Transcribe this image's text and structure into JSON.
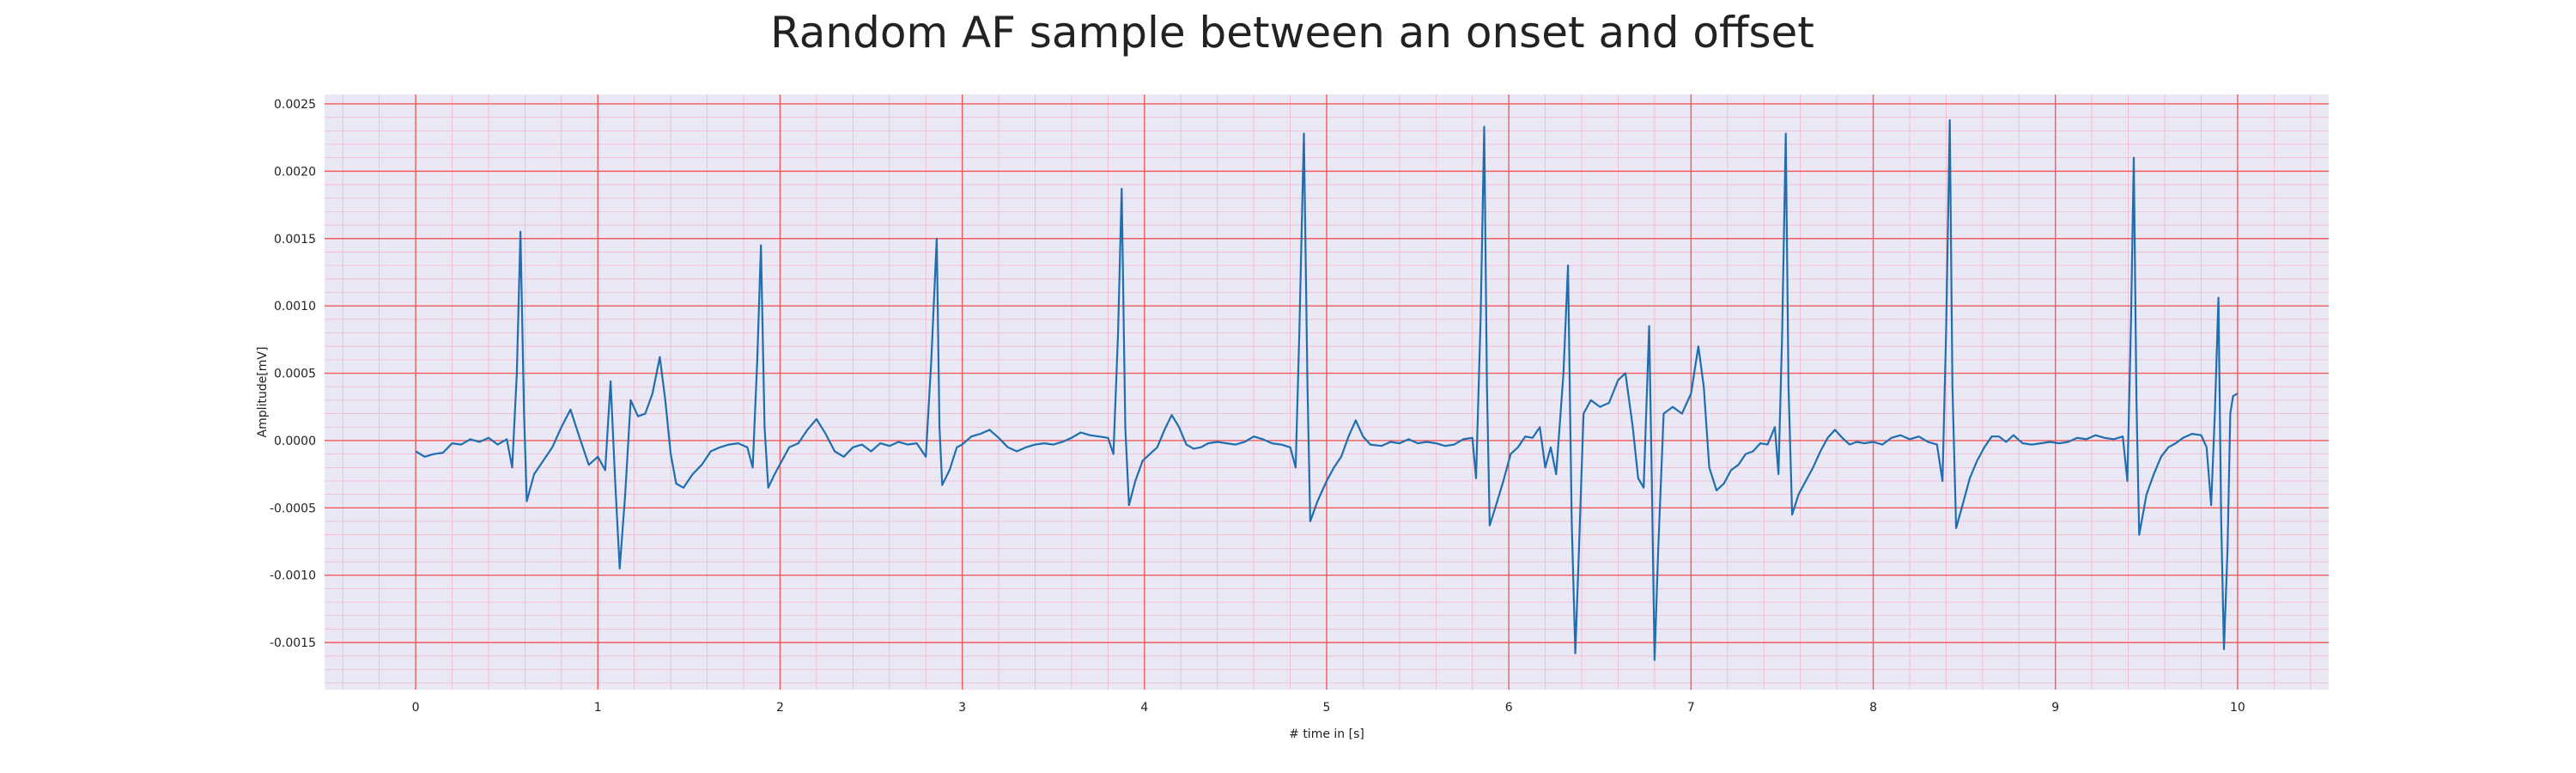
{
  "chart_data": {
    "type": "line",
    "title": "Random AF sample between an onset and offset",
    "xlabel": "# time in [s]",
    "ylabel": "Amplitude[mV]",
    "xlim": [
      -0.5,
      10.5
    ],
    "ylim": [
      -0.00185,
      0.00257
    ],
    "x_ticks": [
      0,
      1,
      2,
      3,
      4,
      5,
      6,
      7,
      8,
      9,
      10
    ],
    "x_tick_labels": [
      "0",
      "1",
      "2",
      "3",
      "4",
      "5",
      "6",
      "7",
      "8",
      "9",
      "10"
    ],
    "y_ticks": [
      -0.0015,
      -0.001,
      -0.0005,
      0.0,
      0.0005,
      0.001,
      0.0015,
      0.002,
      0.0025
    ],
    "y_tick_labels": [
      "-0.0015",
      "-0.0010",
      "-0.0005",
      "0.0000",
      "0.0005",
      "0.0010",
      "0.0015",
      "0.0020",
      "0.0025"
    ],
    "grid": true,
    "grid_minor": true,
    "colors": {
      "plot_background": "#eae8f4",
      "major_grid": "#f25b5b",
      "minor_grid": "#f2b8c8",
      "line": "#1f6fb0"
    },
    "series": [
      {
        "values": [
          [
            0.0,
            -8e-05
          ],
          [
            0.05,
            -0.00012
          ],
          [
            0.1,
            -0.0001
          ],
          [
            0.15,
            -9e-05
          ],
          [
            0.2,
            -2e-05
          ],
          [
            0.25,
            -3e-05
          ],
          [
            0.3,
            1e-05
          ],
          [
            0.35,
            -1e-05
          ],
          [
            0.4,
            2e-05
          ],
          [
            0.45,
            -3e-05
          ],
          [
            0.5,
            1e-05
          ],
          [
            0.53,
            -0.0002
          ],
          [
            0.555,
            0.0005
          ],
          [
            0.575,
            0.00155
          ],
          [
            0.595,
            0.0002
          ],
          [
            0.61,
            -0.00045
          ],
          [
            0.65,
            -0.00025
          ],
          [
            0.7,
            -0.00015
          ],
          [
            0.75,
            -5e-05
          ],
          [
            0.8,
            0.0001
          ],
          [
            0.85,
            0.00023
          ],
          [
            0.9,
            2e-05
          ],
          [
            0.95,
            -0.00018
          ],
          [
            1.0,
            -0.00012
          ],
          [
            1.04,
            -0.00022
          ],
          [
            1.07,
            0.00044
          ],
          [
            1.095,
            -0.0003
          ],
          [
            1.12,
            -0.00095
          ],
          [
            1.15,
            -0.0004
          ],
          [
            1.18,
            0.0003
          ],
          [
            1.22,
            0.00018
          ],
          [
            1.26,
            0.0002
          ],
          [
            1.3,
            0.00035
          ],
          [
            1.34,
            0.00062
          ],
          [
            1.37,
            0.0003
          ],
          [
            1.4,
            -0.0001
          ],
          [
            1.43,
            -0.00032
          ],
          [
            1.47,
            -0.00035
          ],
          [
            1.52,
            -0.00025
          ],
          [
            1.57,
            -0.00018
          ],
          [
            1.62,
            -8e-05
          ],
          [
            1.67,
            -5e-05
          ],
          [
            1.72,
            -3e-05
          ],
          [
            1.77,
            -2e-05
          ],
          [
            1.82,
            -5e-05
          ],
          [
            1.85,
            -0.0002
          ],
          [
            1.875,
            0.0006
          ],
          [
            1.895,
            0.00145
          ],
          [
            1.915,
            0.0001
          ],
          [
            1.935,
            -0.00035
          ],
          [
            1.97,
            -0.00025
          ],
          [
            2.01,
            -0.00015
          ],
          [
            2.05,
            -5e-05
          ],
          [
            2.1,
            -2e-05
          ],
          [
            2.15,
            8e-05
          ],
          [
            2.2,
            0.00016
          ],
          [
            2.25,
            5e-05
          ],
          [
            2.3,
            -8e-05
          ],
          [
            2.35,
            -0.00012
          ],
          [
            2.4,
            -5e-05
          ],
          [
            2.45,
            -3e-05
          ],
          [
            2.5,
            -8e-05
          ],
          [
            2.55,
            -2e-05
          ],
          [
            2.6,
            -4e-05
          ],
          [
            2.65,
            -1e-05
          ],
          [
            2.7,
            -3e-05
          ],
          [
            2.75,
            -2e-05
          ],
          [
            2.8,
            -0.00012
          ],
          [
            2.83,
            0.0006
          ],
          [
            2.86,
            0.0015
          ],
          [
            2.875,
            0.0001
          ],
          [
            2.89,
            -0.00033
          ],
          [
            2.93,
            -0.00022
          ],
          [
            2.97,
            -5e-05
          ],
          [
            3.0,
            -3e-05
          ],
          [
            3.05,
            3e-05
          ],
          [
            3.1,
            5e-05
          ],
          [
            3.15,
            8e-05
          ],
          [
            3.2,
            2e-05
          ],
          [
            3.25,
            -5e-05
          ],
          [
            3.3,
            -8e-05
          ],
          [
            3.35,
            -5e-05
          ],
          [
            3.4,
            -3e-05
          ],
          [
            3.45,
            -2e-05
          ],
          [
            3.5,
            -3e-05
          ],
          [
            3.55,
            -1e-05
          ],
          [
            3.6,
            2e-05
          ],
          [
            3.65,
            6e-05
          ],
          [
            3.7,
            4e-05
          ],
          [
            3.75,
            3e-05
          ],
          [
            3.8,
            2e-05
          ],
          [
            3.83,
            -0.0001
          ],
          [
            3.855,
            0.0008
          ],
          [
            3.875,
            0.00187
          ],
          [
            3.895,
            0.0001
          ],
          [
            3.915,
            -0.00048
          ],
          [
            3.95,
            -0.0003
          ],
          [
            3.99,
            -0.00015
          ],
          [
            4.03,
            -0.0001
          ],
          [
            4.07,
            -5e-05
          ],
          [
            4.11,
            8e-05
          ],
          [
            4.15,
            0.00019
          ],
          [
            4.19,
            0.0001
          ],
          [
            4.23,
            -3e-05
          ],
          [
            4.27,
            -6e-05
          ],
          [
            4.31,
            -5e-05
          ],
          [
            4.35,
            -2e-05
          ],
          [
            4.4,
            -1e-05
          ],
          [
            4.45,
            -2e-05
          ],
          [
            4.5,
            -3e-05
          ],
          [
            4.55,
            -1e-05
          ],
          [
            4.6,
            3e-05
          ],
          [
            4.65,
            1e-05
          ],
          [
            4.7,
            -2e-05
          ],
          [
            4.75,
            -3e-05
          ],
          [
            4.8,
            -5e-05
          ],
          [
            4.83,
            -0.0002
          ],
          [
            4.85,
            0.0008
          ],
          [
            4.875,
            0.00228
          ],
          [
            4.895,
            0.0004
          ],
          [
            4.91,
            -0.0006
          ],
          [
            4.95,
            -0.00045
          ],
          [
            5.0,
            -0.0003
          ],
          [
            5.04,
            -0.0002
          ],
          [
            5.08,
            -0.00012
          ],
          [
            5.12,
            3e-05
          ],
          [
            5.16,
            0.00015
          ],
          [
            5.2,
            3e-05
          ],
          [
            5.24,
            -3e-05
          ],
          [
            5.3,
            -4e-05
          ],
          [
            5.35,
            -1e-05
          ],
          [
            5.4,
            -2e-05
          ],
          [
            5.45,
            1e-05
          ],
          [
            5.5,
            -2e-05
          ],
          [
            5.55,
            -1e-05
          ],
          [
            5.6,
            -2e-05
          ],
          [
            5.65,
            -4e-05
          ],
          [
            5.7,
            -3e-05
          ],
          [
            5.75,
            1e-05
          ],
          [
            5.8,
            2e-05
          ],
          [
            5.82,
            -0.00028
          ],
          [
            5.845,
            0.0009
          ],
          [
            5.865,
            0.00233
          ],
          [
            5.88,
            0.0004
          ],
          [
            5.895,
            -0.00063
          ],
          [
            5.93,
            -0.00048
          ],
          [
            5.97,
            -0.0003
          ],
          [
            6.01,
            -0.0001
          ],
          [
            6.05,
            -5e-05
          ],
          [
            6.09,
            3e-05
          ],
          [
            6.13,
            2e-05
          ],
          [
            6.17,
            0.0001
          ],
          [
            6.2,
            -0.0002
          ],
          [
            6.23,
            -5e-05
          ],
          [
            6.26,
            -0.00025
          ],
          [
            6.3,
            0.0005
          ],
          [
            6.325,
            0.0013
          ],
          [
            6.345,
            -0.0006
          ],
          [
            6.365,
            -0.00158
          ],
          [
            6.385,
            -0.0008
          ],
          [
            6.41,
            0.0002
          ],
          [
            6.45,
            0.0003
          ],
          [
            6.5,
            0.00025
          ],
          [
            6.55,
            0.00028
          ],
          [
            6.6,
            0.00045
          ],
          [
            6.64,
            0.0005
          ],
          [
            6.68,
            0.0001
          ],
          [
            6.71,
            -0.00028
          ],
          [
            6.74,
            -0.00035
          ],
          [
            6.77,
            0.00085
          ],
          [
            6.785,
            -0.0003
          ],
          [
            6.8,
            -0.00163
          ],
          [
            6.82,
            -0.0008
          ],
          [
            6.85,
            0.0002
          ],
          [
            6.9,
            0.00025
          ],
          [
            6.95,
            0.0002
          ],
          [
            7.0,
            0.00035
          ],
          [
            7.04,
            0.0007
          ],
          [
            7.07,
            0.0004
          ],
          [
            7.1,
            -0.0002
          ],
          [
            7.14,
            -0.00037
          ],
          [
            7.18,
            -0.00032
          ],
          [
            7.22,
            -0.00022
          ],
          [
            7.26,
            -0.00018
          ],
          [
            7.3,
            -0.0001
          ],
          [
            7.34,
            -8e-05
          ],
          [
            7.38,
            -2e-05
          ],
          [
            7.42,
            -3e-05
          ],
          [
            7.46,
            0.0001
          ],
          [
            7.48,
            -0.00025
          ],
          [
            7.5,
            0.0008
          ],
          [
            7.52,
            0.00228
          ],
          [
            7.535,
            0.0004
          ],
          [
            7.555,
            -0.00055
          ],
          [
            7.59,
            -0.0004
          ],
          [
            7.63,
            -0.0003
          ],
          [
            7.67,
            -0.0002
          ],
          [
            7.71,
            -8e-05
          ],
          [
            7.75,
            2e-05
          ],
          [
            7.79,
            8e-05
          ],
          [
            7.83,
            2e-05
          ],
          [
            7.87,
            -3e-05
          ],
          [
            7.91,
            -1e-05
          ],
          [
            7.95,
            -2e-05
          ],
          [
            8.0,
            -1e-05
          ],
          [
            8.05,
            -3e-05
          ],
          [
            8.1,
            2e-05
          ],
          [
            8.15,
            4e-05
          ],
          [
            8.2,
            1e-05
          ],
          [
            8.25,
            3e-05
          ],
          [
            8.3,
            -1e-05
          ],
          [
            8.35,
            -3e-05
          ],
          [
            8.38,
            -0.0003
          ],
          [
            8.4,
            0.0008
          ],
          [
            8.42,
            0.00238
          ],
          [
            8.435,
            0.0004
          ],
          [
            8.455,
            -0.00065
          ],
          [
            8.49,
            -0.00048
          ],
          [
            8.53,
            -0.00028
          ],
          [
            8.57,
            -0.00015
          ],
          [
            8.61,
            -5e-05
          ],
          [
            8.65,
            3e-05
          ],
          [
            8.69,
            3e-05
          ],
          [
            8.73,
            -1e-05
          ],
          [
            8.77,
            4e-05
          ],
          [
            8.82,
            -2e-05
          ],
          [
            8.87,
            -3e-05
          ],
          [
            8.92,
            -2e-05
          ],
          [
            8.97,
            -1e-05
          ],
          [
            9.02,
            -2e-05
          ],
          [
            9.07,
            -1e-05
          ],
          [
            9.12,
            2e-05
          ],
          [
            9.17,
            1e-05
          ],
          [
            9.22,
            4e-05
          ],
          [
            9.27,
            2e-05
          ],
          [
            9.32,
            1e-05
          ],
          [
            9.37,
            3e-05
          ],
          [
            9.395,
            -0.0003
          ],
          [
            9.415,
            0.0009
          ],
          [
            9.43,
            0.0021
          ],
          [
            9.445,
            0.0003
          ],
          [
            9.46,
            -0.0007
          ],
          [
            9.5,
            -0.0004
          ],
          [
            9.54,
            -0.00025
          ],
          [
            9.58,
            -0.00012
          ],
          [
            9.62,
            -5e-05
          ],
          [
            9.66,
            -2e-05
          ],
          [
            9.7,
            2e-05
          ],
          [
            9.75,
            5e-05
          ],
          [
            9.8,
            4e-05
          ],
          [
            9.83,
            -5e-05
          ],
          [
            9.855,
            -0.00048
          ],
          [
            9.875,
            0.0002
          ],
          [
            9.895,
            0.00106
          ],
          [
            9.91,
            -0.0006
          ],
          [
            9.925,
            -0.00155
          ],
          [
            9.945,
            -0.0008
          ],
          [
            9.96,
            0.0002
          ],
          [
            9.975,
            0.00033
          ],
          [
            10.0,
            0.00035
          ]
        ]
      }
    ]
  }
}
